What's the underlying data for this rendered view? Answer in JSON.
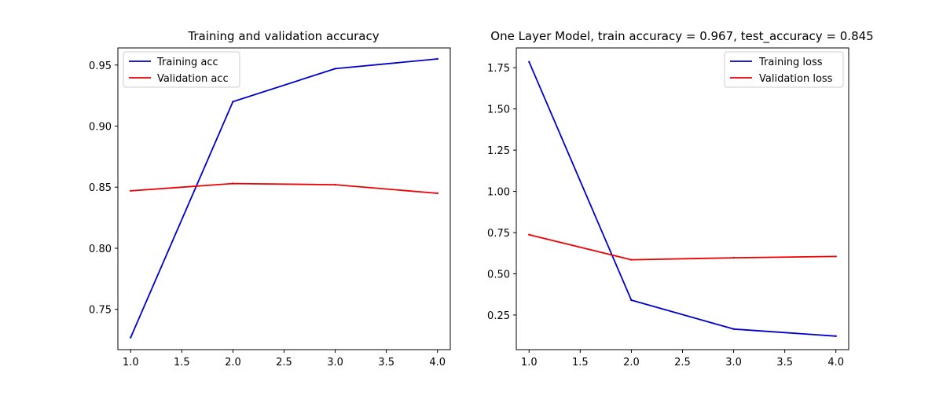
{
  "figure": {
    "background": "#ffffff"
  },
  "chart_data": [
    {
      "type": "line",
      "title": "Training and validation accuracy",
      "xlabel": "",
      "ylabel": "",
      "x": [
        1.0,
        2.0,
        3.0,
        4.0
      ],
      "xlim": [
        0.875,
        4.125
      ],
      "ylim": [
        0.717,
        0.964
      ],
      "xticks": [
        1.0,
        1.5,
        2.0,
        2.5,
        3.0,
        3.5,
        4.0
      ],
      "xtick_labels": [
        "1.0",
        "1.5",
        "2.0",
        "2.5",
        "3.0",
        "3.5",
        "4.0"
      ],
      "yticks": [
        0.75,
        0.8,
        0.85,
        0.9,
        0.95
      ],
      "ytick_labels": [
        "0.75",
        "0.80",
        "0.85",
        "0.90",
        "0.95"
      ],
      "grid": false,
      "legend_position": "top-left",
      "series": [
        {
          "name": "Training acc",
          "color": "#0000cc",
          "values": [
            0.727,
            0.92,
            0.947,
            0.955
          ]
        },
        {
          "name": "Validation acc",
          "color": "#ee0000",
          "values": [
            0.847,
            0.853,
            0.852,
            0.845
          ]
        }
      ]
    },
    {
      "type": "line",
      "title": "One Layer Model, train accuracy = 0.967, test_accuracy = 0.845",
      "xlabel": "",
      "ylabel": "",
      "x": [
        1.0,
        2.0,
        3.0,
        4.0
      ],
      "xlim": [
        0.875,
        4.125
      ],
      "ylim": [
        0.04,
        1.87
      ],
      "xticks": [
        1.0,
        1.5,
        2.0,
        2.5,
        3.0,
        3.5,
        4.0
      ],
      "xtick_labels": [
        "1.0",
        "1.5",
        "2.0",
        "2.5",
        "3.0",
        "3.5",
        "4.0"
      ],
      "yticks": [
        0.25,
        0.5,
        0.75,
        1.0,
        1.25,
        1.5,
        1.75
      ],
      "ytick_labels": [
        "0.25",
        "0.50",
        "0.75",
        "1.00",
        "1.25",
        "1.50",
        "1.75"
      ],
      "grid": false,
      "legend_position": "top-right",
      "series": [
        {
          "name": "Training loss",
          "color": "#0000cc",
          "values": [
            1.785,
            0.34,
            0.165,
            0.122
          ]
        },
        {
          "name": "Validation loss",
          "color": "#ee0000",
          "values": [
            0.737,
            0.585,
            0.597,
            0.605
          ]
        }
      ]
    }
  ]
}
